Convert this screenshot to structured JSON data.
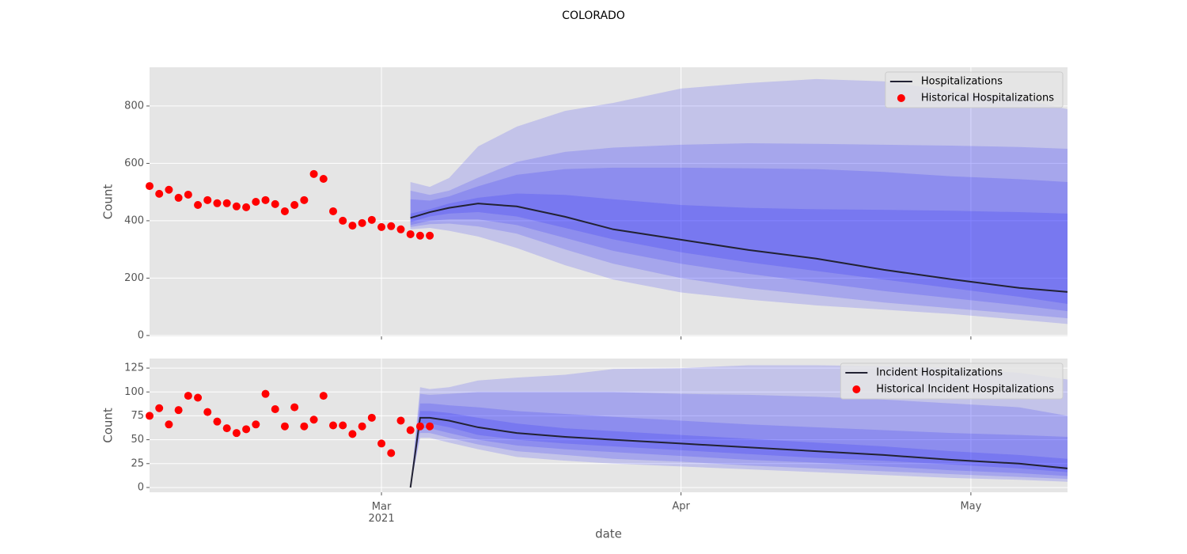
{
  "figure": {
    "title": "COLORADO",
    "xlabel": "date",
    "xlim": [
      "2021-02-05",
      "2021-05-11"
    ],
    "xticks": [
      {
        "value": "2021-03-01",
        "label": "Mar\n2021"
      },
      {
        "value": "2021-04-01",
        "label": "Apr"
      },
      {
        "value": "2021-05-01",
        "label": "May"
      }
    ],
    "grid": true
  },
  "chart_data": [
    {
      "type": "line",
      "ylabel": "Count",
      "ylim": [
        -3,
        935
      ],
      "yticks": [
        0,
        200,
        400,
        600,
        800
      ],
      "legend": "upper right",
      "bands": {
        "color": "#0000ff",
        "x": [
          "2021-03-04",
          "2021-03-06",
          "2021-03-08",
          "2021-03-11",
          "2021-03-15",
          "2021-03-20",
          "2021-03-25",
          "2021-04-01",
          "2021-04-08",
          "2021-04-15",
          "2021-04-22",
          "2021-04-29",
          "2021-05-06",
          "2021-05-11"
        ],
        "ranges": [
          {
            "lower": [
              370,
              375,
              365,
              345,
              305,
              245,
              195,
              150,
              125,
              105,
              90,
              75,
              55,
              40
            ],
            "upper": [
              535,
              518,
              549,
              659,
              728,
              783,
              811,
              861,
              880,
              894,
              886,
              852,
              825,
              789
            ]
          },
          {
            "lower": [
              378,
              388,
              390,
              380,
              355,
              300,
              250,
              200,
              165,
              140,
              115,
              95,
              75,
              60
            ],
            "upper": [
              505,
              490,
              505,
              550,
              605,
              640,
              655,
              665,
              670,
              668,
              665,
              662,
              657,
              651
            ]
          },
          {
            "lower": [
              385,
              400,
              405,
              405,
              385,
              340,
              295,
              250,
              215,
              185,
              155,
              130,
              105,
              85
            ],
            "upper": [
              475,
              470,
              485,
              520,
              560,
              580,
              585,
              585,
              583,
              580,
              570,
              555,
              545,
              535
            ]
          },
          {
            "lower": [
              395,
              415,
              425,
              430,
              415,
              375,
              335,
              290,
              255,
              225,
              195,
              165,
              135,
              110
            ],
            "upper": [
              425,
              440,
              460,
              480,
              495,
              490,
              475,
              455,
              445,
              440,
              438,
              435,
              430,
              425
            ]
          }
        ]
      },
      "series": [
        {
          "name": "Hospitalizations",
          "style": "line",
          "color": "#222233",
          "x": [
            "2021-03-04",
            "2021-03-06",
            "2021-03-08",
            "2021-03-11",
            "2021-03-15",
            "2021-03-20",
            "2021-03-25",
            "2021-04-01",
            "2021-04-08",
            "2021-04-15",
            "2021-04-22",
            "2021-04-29",
            "2021-05-06",
            "2021-05-11"
          ],
          "values": [
            410,
            430,
            445,
            460,
            450,
            414,
            370,
            334,
            298,
            268,
            229,
            196,
            166,
            152
          ]
        },
        {
          "name": "Historical Hospitalizations",
          "style": "scatter",
          "color": "#ff0000",
          "x": [
            "2021-02-05",
            "2021-02-06",
            "2021-02-07",
            "2021-02-08",
            "2021-02-09",
            "2021-02-10",
            "2021-02-11",
            "2021-02-12",
            "2021-02-13",
            "2021-02-14",
            "2021-02-15",
            "2021-02-16",
            "2021-02-17",
            "2021-02-18",
            "2021-02-19",
            "2021-02-20",
            "2021-02-21",
            "2021-02-22",
            "2021-02-23",
            "2021-02-24",
            "2021-02-25",
            "2021-02-26",
            "2021-02-27",
            "2021-02-28",
            "2021-03-01",
            "2021-03-02",
            "2021-03-03",
            "2021-03-04",
            "2021-03-05",
            "2021-03-06"
          ],
          "values": [
            521,
            494,
            508,
            480,
            491,
            455,
            472,
            461,
            461,
            450,
            447,
            466,
            472,
            458,
            433,
            455,
            472,
            563,
            546,
            433,
            400,
            383,
            392,
            403,
            378,
            381,
            370,
            353,
            348,
            348
          ]
        }
      ]
    },
    {
      "type": "line",
      "ylabel": "Count",
      "ylim": [
        -5,
        135
      ],
      "yticks": [
        0,
        25,
        50,
        75,
        100,
        125
      ],
      "legend": "upper right",
      "bands": {
        "color": "#0000ff",
        "x": [
          "2021-03-04",
          "2021-03-05",
          "2021-03-06",
          "2021-03-08",
          "2021-03-11",
          "2021-03-15",
          "2021-03-20",
          "2021-03-25",
          "2021-04-01",
          "2021-04-08",
          "2021-04-15",
          "2021-04-22",
          "2021-04-29",
          "2021-05-06",
          "2021-05-11"
        ],
        "ranges": [
          {
            "lower": [
              0,
              52,
              52,
              47,
              40,
              32,
              28,
              25,
              22,
              19,
              16,
              13,
              10,
              8,
              6
            ],
            "upper": [
              0,
              105,
              103,
              105,
              112,
              115,
              118,
              124,
              125,
              128,
              128,
              127,
              125,
              120,
              113
            ]
          },
          {
            "lower": [
              0,
              57,
              57,
              52,
              45,
              38,
              34,
              30,
              27,
              23,
              20,
              17,
              14,
              11,
              9
            ],
            "upper": [
              0,
              98,
              97,
              98,
              100,
              100,
              100,
              100,
              98,
              97,
              95,
              92,
              88,
              84,
              75
            ]
          },
          {
            "lower": [
              0,
              62,
              62,
              57,
              50,
              44,
              40,
              37,
              33,
              29,
              26,
              22,
              18,
              15,
              12
            ],
            "upper": [
              0,
              88,
              88,
              86,
              84,
              80,
              77,
              74,
              70,
              66,
              63,
              60,
              57,
              55,
              53
            ]
          },
          {
            "lower": [
              0,
              67,
              67,
              63,
              55,
              50,
              46,
              43,
              39,
              35,
              31,
              28,
              24,
              20,
              16
            ],
            "upper": [
              0,
              80,
              80,
              78,
              73,
              67,
              62,
              59,
              55,
              51,
              47,
              43,
              38,
              34,
              30
            ]
          }
        ]
      },
      "series": [
        {
          "name": "Incident Hospitalizations",
          "style": "line",
          "color": "#222233",
          "x": [
            "2021-03-04",
            "2021-03-05",
            "2021-03-06",
            "2021-03-08",
            "2021-03-11",
            "2021-03-15",
            "2021-03-20",
            "2021-03-25",
            "2021-04-01",
            "2021-04-08",
            "2021-04-15",
            "2021-04-22",
            "2021-04-29",
            "2021-05-06",
            "2021-05-11"
          ],
          "values": [
            0,
            73,
            73,
            70,
            63,
            57,
            53,
            50,
            46,
            42,
            38,
            34,
            29,
            25,
            20
          ]
        },
        {
          "name": "Historical Incident Hospitalizations",
          "style": "scatter",
          "color": "#ff0000",
          "x": [
            "2021-02-05",
            "2021-02-06",
            "2021-02-07",
            "2021-02-08",
            "2021-02-09",
            "2021-02-10",
            "2021-02-11",
            "2021-02-12",
            "2021-02-13",
            "2021-02-14",
            "2021-02-15",
            "2021-02-16",
            "2021-02-17",
            "2021-02-18",
            "2021-02-19",
            "2021-02-20",
            "2021-02-21",
            "2021-02-22",
            "2021-02-23",
            "2021-02-24",
            "2021-02-25",
            "2021-02-26",
            "2021-02-27",
            "2021-02-28",
            "2021-03-01",
            "2021-03-02",
            "2021-03-03",
            "2021-03-04",
            "2021-03-05",
            "2021-03-06"
          ],
          "values": [
            75,
            83,
            66,
            81,
            96,
            94,
            79,
            69,
            62,
            57,
            61,
            66,
            98,
            82,
            64,
            84,
            64,
            71,
            96,
            65,
            65,
            56,
            64,
            73,
            46,
            36,
            70,
            60,
            64,
            64
          ]
        }
      ]
    }
  ]
}
